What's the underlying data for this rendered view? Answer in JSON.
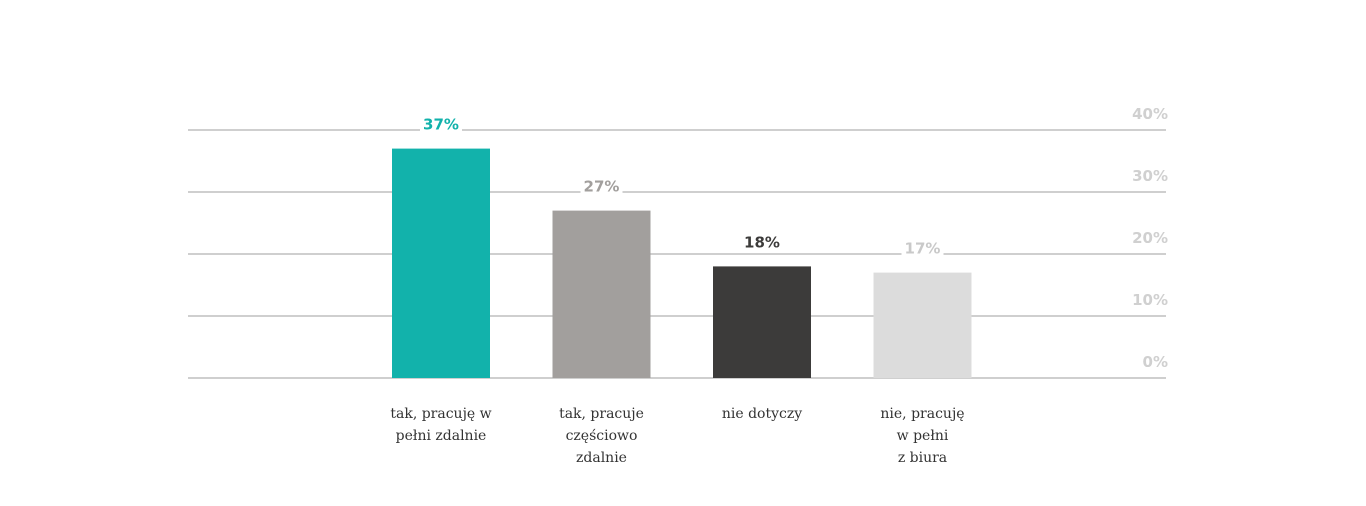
{
  "chart_data": {
    "type": "bar",
    "categories": [
      [
        "tak, pracuję w",
        "pełni zdalnie"
      ],
      [
        "tak, pracuje",
        "częściowo",
        "zdalnie"
      ],
      [
        "nie dotyczy"
      ],
      [
        "nie, pracuję",
        "w pełni",
        "z biura"
      ]
    ],
    "values": [
      37,
      27,
      18,
      17
    ],
    "value_labels": [
      "37%",
      "27%",
      "18%",
      "17%"
    ],
    "bar_colors": [
      "#12b2ab",
      "#a29f9d",
      "#3c3b3a",
      "#dcdcdc"
    ],
    "value_label_colors": [
      "#12b2ab",
      "#a29f9d",
      "#3c3b3a",
      "#c9c9c9"
    ],
    "ylim": [
      0,
      40
    ],
    "yticks": [
      0,
      10,
      20,
      30,
      40
    ],
    "ytick_labels": [
      "0%",
      "10%",
      "20%",
      "30%",
      "40%"
    ],
    "grid": true,
    "title": "",
    "xlabel": "",
    "ylabel": ""
  }
}
